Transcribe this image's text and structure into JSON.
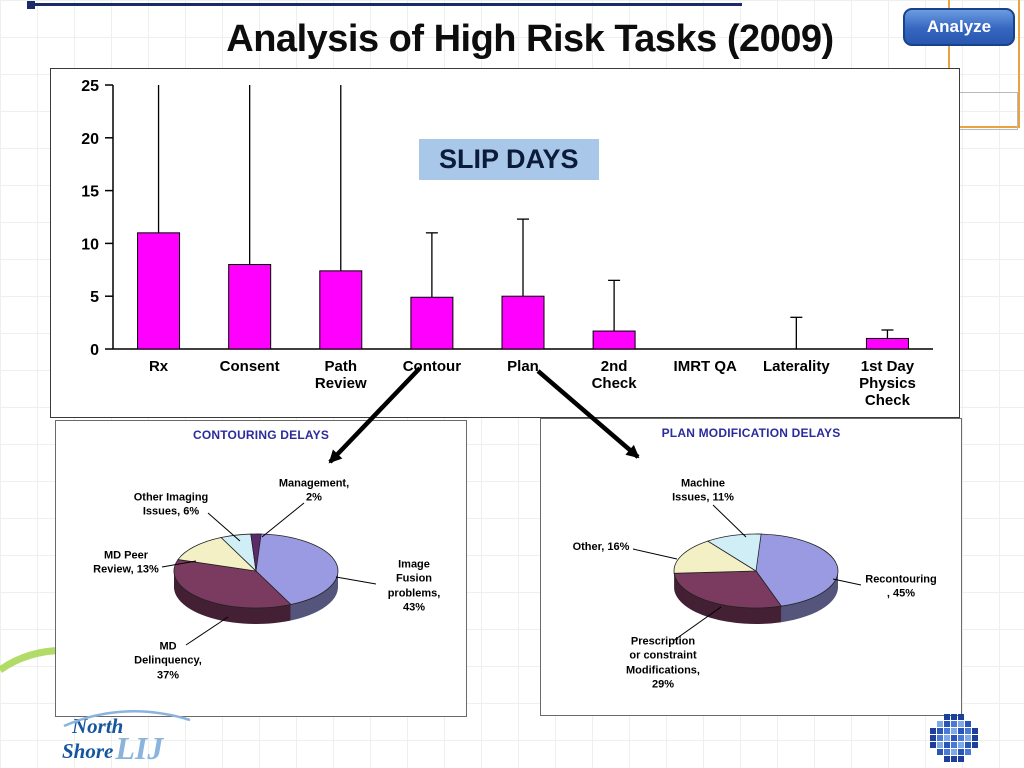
{
  "slide": {
    "title": "Analysis of High Risk Tasks (2009)",
    "analyze_button_label": "Analyze",
    "logo": {
      "north": "North",
      "shore": "Shore",
      "lij": "LIJ"
    }
  },
  "chart_data": [
    {
      "type": "bar",
      "title": "SLIP DAYS",
      "xlabel": "",
      "ylabel": "",
      "ylim": [
        0,
        25
      ],
      "yticks": [
        0,
        5,
        10,
        15,
        20,
        25
      ],
      "grid": false,
      "bar_color": "#ff00ff",
      "categories": [
        "Rx",
        "Consent",
        "Path\nReview",
        "Contour",
        "Plan",
        "2nd\nCheck",
        "IMRT QA",
        "Laterality",
        "1st Day\nPhysics\nCheck"
      ],
      "values": [
        11,
        8,
        7.4,
        4.9,
        5,
        1.7,
        0,
        0,
        1
      ],
      "whisker_high": [
        25,
        25,
        25,
        11,
        12.3,
        6.5,
        0,
        3,
        1.8
      ]
    },
    {
      "type": "pie",
      "title": "CONTOURING DELAYS",
      "slices": [
        {
          "label": "Image Fusion problems",
          "pct": 43,
          "display": "Image Fusion\nproblems,\n43%",
          "color": "#9a9ae2"
        },
        {
          "label": "MD Delinquency",
          "pct": 37,
          "display": "MD\nDelinquency,\n37%",
          "color": "#7b3a5f"
        },
        {
          "label": "MD Peer Review",
          "pct": 13,
          "display": "MD Peer\nReview, 13%",
          "color": "#f4f0c6"
        },
        {
          "label": "Other Imaging Issues",
          "pct": 6,
          "display": "Other Imaging\nIssues, 6%",
          "color": "#cfeef5"
        },
        {
          "label": "Management",
          "pct": 2,
          "display": "Management,\n2%",
          "color": "#5a2a6a"
        }
      ]
    },
    {
      "type": "pie",
      "title": "PLAN MODIFICATION DELAYS",
      "slices": [
        {
          "label": "Recontouring",
          "pct": 45,
          "display": "Recontouring\n, 45%",
          "color": "#9a9ae2"
        },
        {
          "label": "Prescription or constraint Modifications",
          "pct": 29,
          "display": "Prescription\nor constraint\nModifications,\n29%",
          "color": "#7b3a5f"
        },
        {
          "label": "Other",
          "pct": 16,
          "display": "Other, 16%",
          "color": "#f4f0c6"
        },
        {
          "label": "Machine Issues",
          "pct": 11,
          "display": "Machine\nIssues, 11%",
          "color": "#cfeef5"
        }
      ]
    }
  ]
}
